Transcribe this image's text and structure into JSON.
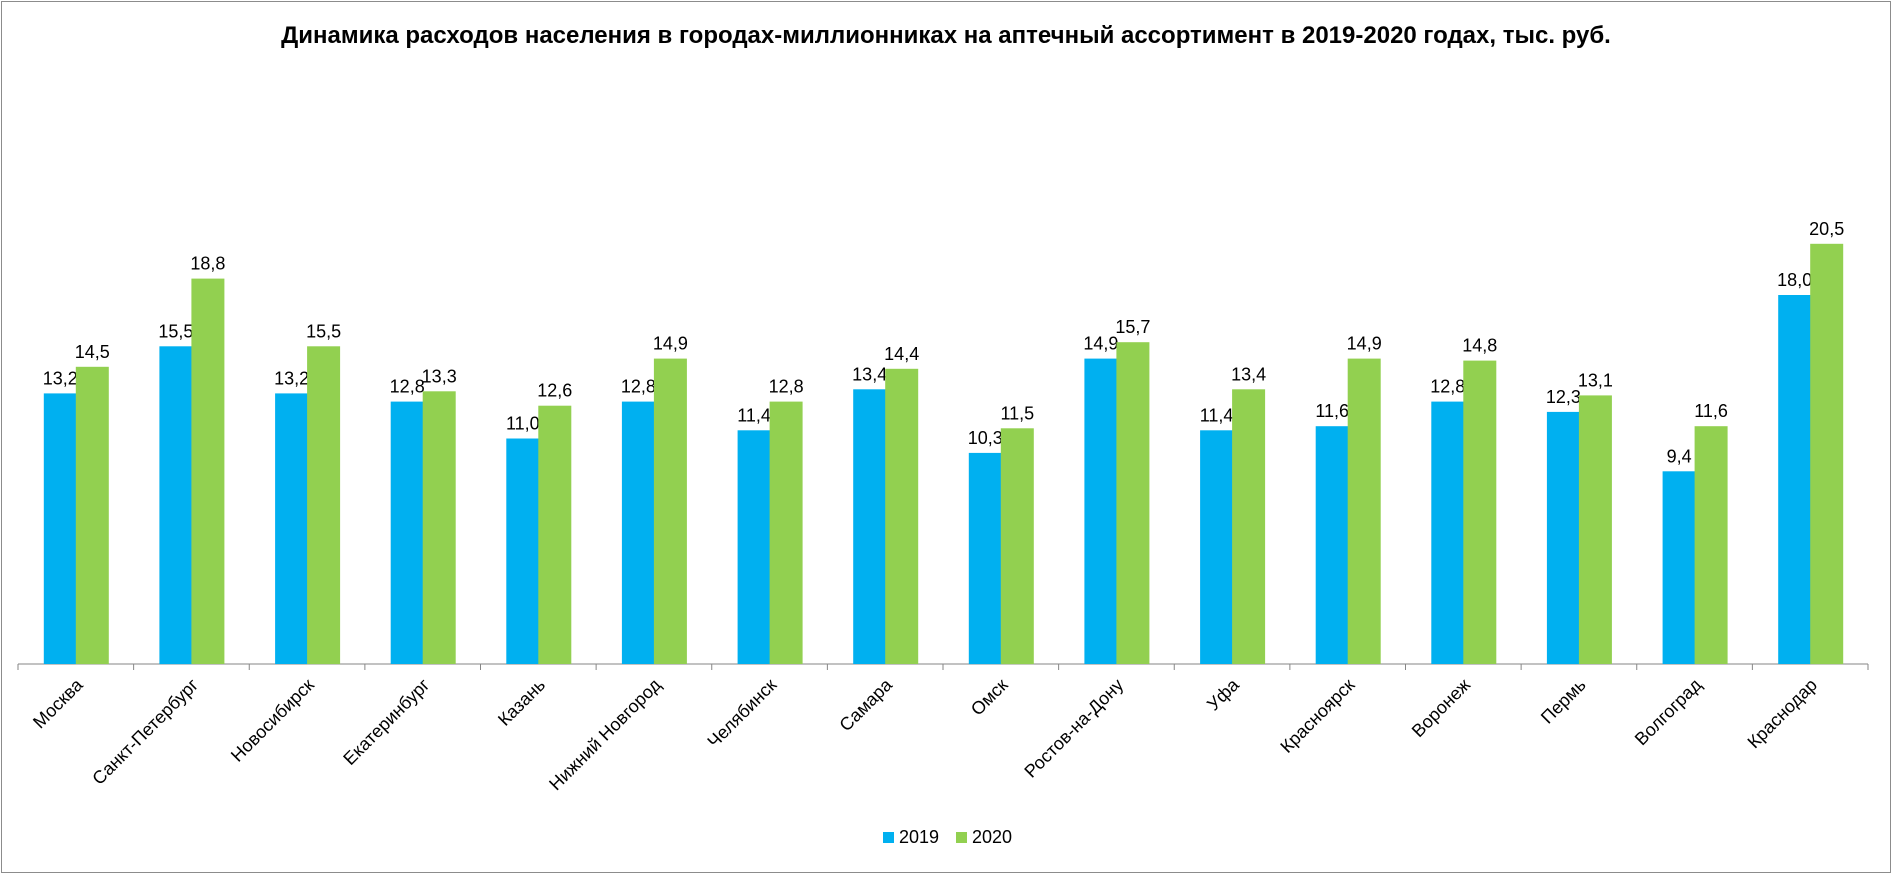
{
  "chart_data": {
    "type": "bar",
    "title": "Динамика расходов населения в городах-миллионниках на аптечный ассортимент в 2019-2020 годах, тыс. руб.",
    "categories": [
      "Москва",
      "Санкт-Петербург",
      "Новосибирск",
      "Екатеринбург",
      "Казань",
      "Нижний Новгород",
      "Челябинск",
      "Самара",
      "Омск",
      "Ростов-на-Дону",
      "Уфа",
      "Красноярск",
      "Воронеж",
      "Пермь",
      "Волгоград",
      "Краснодар"
    ],
    "series": [
      {
        "name": "2019",
        "color": "#00b0f0",
        "values": [
          13.2,
          15.5,
          13.2,
          12.8,
          11.0,
          12.8,
          11.4,
          13.4,
          10.3,
          14.9,
          11.4,
          11.6,
          12.8,
          12.3,
          9.4,
          18.0
        ],
        "labels": [
          "13,2",
          "15,5",
          "13,2",
          "12,8",
          "11,0",
          "12,8",
          "11,4",
          "13,4",
          "10,3",
          "14,9",
          "11,4",
          "11,6",
          "12,8",
          "12,3",
          "9,4",
          "18,0"
        ]
      },
      {
        "name": "2020",
        "color": "#92d050",
        "values": [
          14.5,
          18.8,
          15.5,
          13.3,
          12.6,
          14.9,
          12.8,
          14.4,
          11.5,
          15.7,
          13.4,
          14.9,
          14.8,
          13.1,
          11.6,
          20.5
        ],
        "labels": [
          "14,5",
          "18,8",
          "15,5",
          "13,3",
          "12,6",
          "14,9",
          "12,8",
          "14,4",
          "11,5",
          "15,7",
          "13,4",
          "14,9",
          "14,8",
          "13,1",
          "11,6",
          "20,5"
        ]
      }
    ],
    "ylim": [
      0,
      22
    ],
    "grid": false,
    "legend": "bottom-center"
  }
}
